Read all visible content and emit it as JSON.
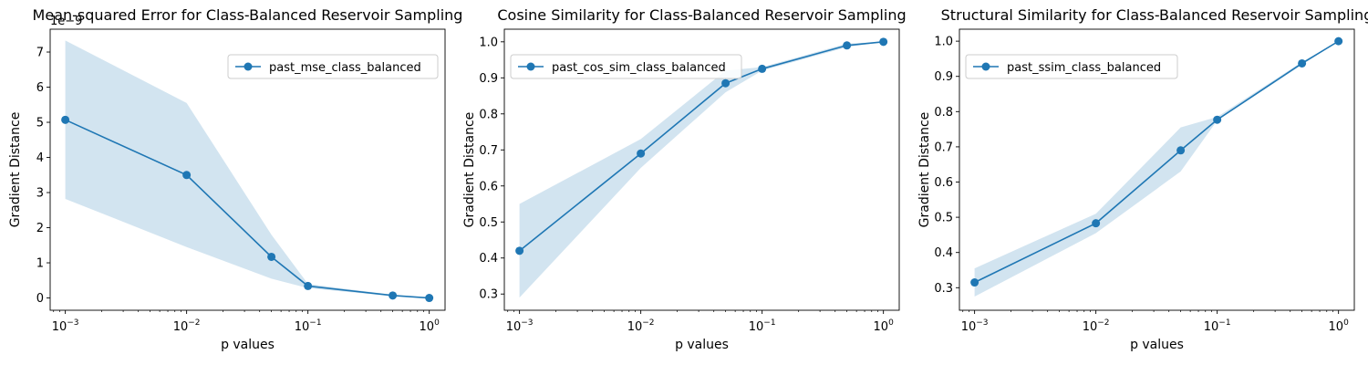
{
  "chart_data": [
    {
      "type": "line",
      "title": "Mean-squared Error for Class-Balanced Reservoir Sampling",
      "xlabel": "p values",
      "ylabel": "Gradient Distance",
      "xscale": "log",
      "xlim": [
        0.00075,
        1.35
      ],
      "ylim": [
        -0.35,
        7.65
      ],
      "offset_text": "1e−9",
      "x_ticks": [
        0.001,
        0.01,
        0.1,
        1
      ],
      "x_tick_labels": [
        [
          "10",
          "−3"
        ],
        [
          "10",
          "−2"
        ],
        [
          "10",
          "−1"
        ],
        [
          "10",
          "0"
        ]
      ],
      "y_ticks": [
        0,
        1,
        2,
        3,
        4,
        5,
        6,
        7
      ],
      "y_tick_labels": [
        "0",
        "1",
        "2",
        "3",
        "4",
        "5",
        "6",
        "7"
      ],
      "legend_position": "top-right",
      "grid": false,
      "series": [
        {
          "name": "past_mse_class_balanced",
          "color": "#1f77b4",
          "x": [
            0.001,
            0.01,
            0.05,
            0.1,
            0.5,
            1
          ],
          "y": [
            5.07,
            3.5,
            1.17,
            0.34,
            0.07,
            0.0
          ],
          "band_lower": [
            2.82,
            1.45,
            0.55,
            0.28,
            0.05,
            0.0
          ],
          "band_upper": [
            7.33,
            5.55,
            1.8,
            0.4,
            0.09,
            0.0
          ]
        }
      ]
    },
    {
      "type": "line",
      "title": "Cosine Similarity for Class-Balanced Reservoir Sampling",
      "xlabel": "p values",
      "ylabel": "Gradient Distance",
      "xscale": "log",
      "xlim": [
        0.00075,
        1.35
      ],
      "ylim": [
        0.255,
        1.035
      ],
      "offset_text": "",
      "x_ticks": [
        0.001,
        0.01,
        0.1,
        1
      ],
      "x_tick_labels": [
        [
          "10",
          "−3"
        ],
        [
          "10",
          "−2"
        ],
        [
          "10",
          "−1"
        ],
        [
          "10",
          "0"
        ]
      ],
      "y_ticks": [
        0.3,
        0.4,
        0.5,
        0.6,
        0.7,
        0.8,
        0.9,
        1.0
      ],
      "y_tick_labels": [
        "0.3",
        "0.4",
        "0.5",
        "0.6",
        "0.7",
        "0.8",
        "0.9",
        "1.0"
      ],
      "legend_position": "top-left",
      "grid": false,
      "series": [
        {
          "name": "past_cos_sim_class_balanced",
          "color": "#1f77b4",
          "x": [
            0.001,
            0.01,
            0.05,
            0.1,
            0.5,
            1
          ],
          "y": [
            0.42,
            0.69,
            0.885,
            0.925,
            0.99,
            1.0
          ],
          "band_lower": [
            0.29,
            0.65,
            0.86,
            0.92,
            0.985,
            1.0
          ],
          "band_upper": [
            0.55,
            0.73,
            0.92,
            0.93,
            0.995,
            1.0
          ]
        }
      ]
    },
    {
      "type": "line",
      "title": "Structural Similarity for Class-Balanced Reservoir Sampling",
      "xlabel": "p values",
      "ylabel": "Gradient Distance",
      "xscale": "log",
      "xlim": [
        0.00075,
        1.35
      ],
      "ylim": [
        0.236,
        1.034
      ],
      "offset_text": "",
      "x_ticks": [
        0.001,
        0.01,
        0.1,
        1
      ],
      "x_tick_labels": [
        [
          "10",
          "−3"
        ],
        [
          "10",
          "−2"
        ],
        [
          "10",
          "−1"
        ],
        [
          "10",
          "0"
        ]
      ],
      "y_ticks": [
        0.3,
        0.4,
        0.5,
        0.6,
        0.7,
        0.8,
        0.9,
        1.0
      ],
      "y_tick_labels": [
        "0.3",
        "0.4",
        "0.5",
        "0.6",
        "0.7",
        "0.8",
        "0.9",
        "1.0"
      ],
      "legend_position": "top-left",
      "grid": false,
      "series": [
        {
          "name": "past_ssim_class_balanced",
          "color": "#1f77b4",
          "x": [
            0.001,
            0.01,
            0.05,
            0.1,
            0.5,
            1
          ],
          "y": [
            0.315,
            0.483,
            0.69,
            0.777,
            0.937,
            1.0
          ],
          "band_lower": [
            0.275,
            0.455,
            0.63,
            0.775,
            0.933,
            1.0
          ],
          "band_upper": [
            0.355,
            0.51,
            0.755,
            0.785,
            0.941,
            1.0
          ]
        }
      ]
    }
  ]
}
